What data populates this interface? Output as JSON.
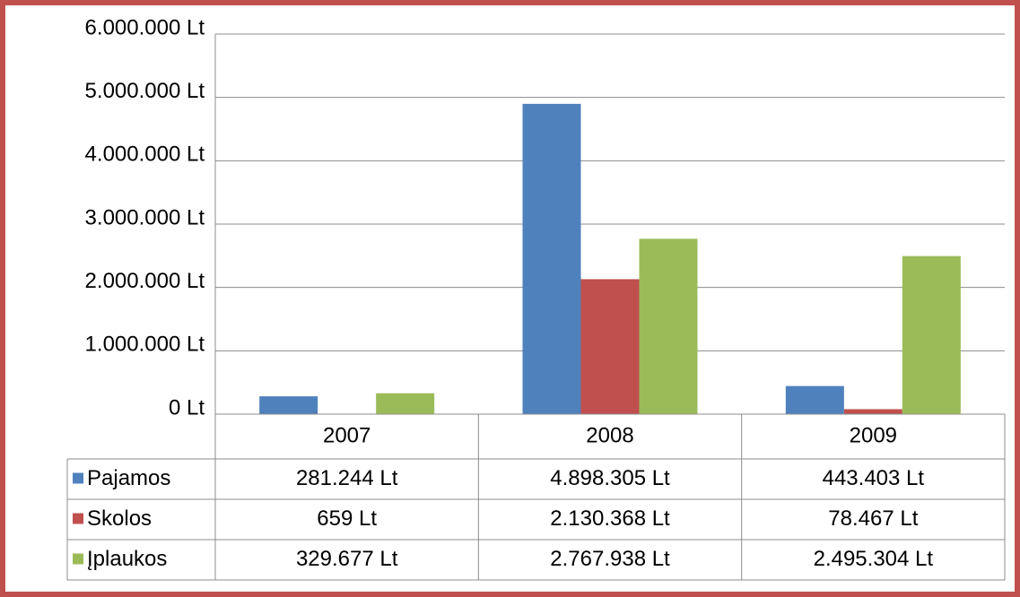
{
  "chart_data": {
    "type": "bar",
    "categories": [
      "2007",
      "2008",
      "2009"
    ],
    "series": [
      {
        "name": "Pajamos",
        "color": "#4f81bd",
        "values": [
          281244,
          4898305,
          443403
        ],
        "value_labels": [
          "281.244 Lt",
          "4.898.305 Lt",
          "443.403 Lt"
        ]
      },
      {
        "name": "Skolos",
        "color": "#c0504d",
        "values": [
          659,
          2130368,
          78467
        ],
        "value_labels": [
          "659 Lt",
          "2.130.368 Lt",
          "78.467 Lt"
        ]
      },
      {
        "name": "Įplaukos",
        "color": "#9bbb59",
        "values": [
          329677,
          2767938,
          2495304
        ],
        "value_labels": [
          "329.677 Lt",
          "2.767.938 Lt",
          "2.495.304 Lt"
        ]
      }
    ],
    "ylim": [
      0,
      6000000
    ],
    "yticks": [
      {
        "value": 0,
        "label": "0 Lt"
      },
      {
        "value": 1000000,
        "label": "1.000.000 Lt"
      },
      {
        "value": 2000000,
        "label": "2.000.000 Lt"
      },
      {
        "value": 3000000,
        "label": "3.000.000 Lt"
      },
      {
        "value": 4000000,
        "label": "4.000.000 Lt"
      },
      {
        "value": 5000000,
        "label": "5.000.000 Lt"
      },
      {
        "value": 6000000,
        "label": "6.000.000 Lt"
      }
    ],
    "grid": true
  }
}
